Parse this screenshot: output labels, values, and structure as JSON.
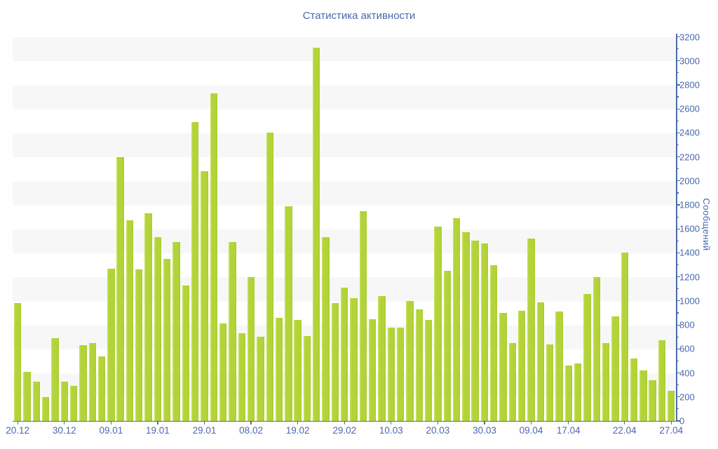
{
  "chart_data": {
    "type": "bar",
    "title": "Статистика активности",
    "ylabel": "Сообщений",
    "xlabel": "",
    "ylim": [
      0,
      3200
    ],
    "y_tick_step": 200,
    "y_minor_tick_step": 100,
    "grid": "horizontal-stripes-per-200",
    "legend": "none",
    "values": [
      980,
      410,
      330,
      200,
      690,
      330,
      290,
      630,
      650,
      540,
      1270,
      2200,
      1670,
      1260,
      1730,
      1530,
      1350,
      1490,
      1130,
      2490,
      2080,
      2730,
      810,
      1490,
      730,
      1200,
      700,
      2400,
      860,
      1790,
      840,
      710,
      3110,
      1530,
      980,
      1110,
      1020,
      1750,
      850,
      1040,
      780,
      780,
      1000,
      930,
      840,
      1620,
      1250,
      1690,
      1570,
      1500,
      1480,
      1300,
      900,
      650,
      920,
      1520,
      990,
      640,
      910,
      460,
      480,
      1060,
      1200,
      650,
      870,
      1400,
      520,
      420,
      340,
      670,
      250
    ],
    "x_tick_labels": [
      {
        "index": 0,
        "label": "20.12"
      },
      {
        "index": 5,
        "label": "30.12"
      },
      {
        "index": 10,
        "label": "09.01"
      },
      {
        "index": 15,
        "label": "19.01"
      },
      {
        "index": 20,
        "label": "29.01"
      },
      {
        "index": 25,
        "label": "08.02"
      },
      {
        "index": 30,
        "label": "19.02"
      },
      {
        "index": 35,
        "label": "29.02"
      },
      {
        "index": 40,
        "label": "10.03"
      },
      {
        "index": 45,
        "label": "20.03"
      },
      {
        "index": 50,
        "label": "30.03"
      },
      {
        "index": 55,
        "label": "09.04"
      },
      {
        "index": 59,
        "label": "17.04"
      },
      {
        "index": 65,
        "label": "22.04"
      },
      {
        "index": 70,
        "label": "27.04"
      }
    ],
    "y_tick_labels": [
      "0",
      "200",
      "400",
      "600",
      "800",
      "1000",
      "1200",
      "1400",
      "1600",
      "1800",
      "2000",
      "2200",
      "2400",
      "2600",
      "2800",
      "3000",
      "3200"
    ],
    "colors": {
      "bar": "#b3d438",
      "bar_highlight": "#cde26a",
      "bar_shadow": "#a6cb2e",
      "axis": "#4e6aa8",
      "text": "#4a67ab",
      "stripe": "#f7f7f7",
      "background": "#ffffff"
    }
  }
}
